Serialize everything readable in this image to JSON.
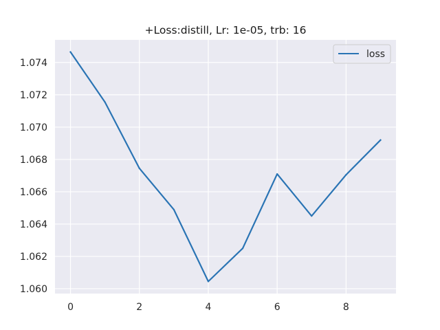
{
  "chart_data": {
    "type": "line",
    "title": "+Loss:distill, Lr: 1e-05, trb: 16",
    "xlabel": "",
    "ylabel": "",
    "xlim": [
      -0.45,
      9.45
    ],
    "ylim": [
      1.0597,
      1.0754
    ],
    "xticks": [
      0,
      2,
      4,
      6,
      8
    ],
    "xtick_labels": [
      "0",
      "2",
      "4",
      "6",
      "8"
    ],
    "yticks": [
      1.06,
      1.062,
      1.064,
      1.066,
      1.068,
      1.07,
      1.072,
      1.074
    ],
    "ytick_labels": [
      "1.060",
      "1.062",
      "1.064",
      "1.066",
      "1.068",
      "1.070",
      "1.072",
      "1.074"
    ],
    "grid": true,
    "legend_position": "upper right",
    "series": [
      {
        "name": "loss",
        "color": "#2a74b4",
        "x": [
          0,
          1,
          2,
          3,
          4,
          5,
          6,
          7,
          8,
          9
        ],
        "values": [
          1.07465,
          1.07155,
          1.06745,
          1.0649,
          1.06045,
          1.0625,
          1.0671,
          1.0645,
          1.06705,
          1.0692
        ]
      }
    ]
  },
  "colors": {
    "plot_background": "#eaeaf2",
    "grid": "#ffffff",
    "series": "#2a74b4"
  }
}
